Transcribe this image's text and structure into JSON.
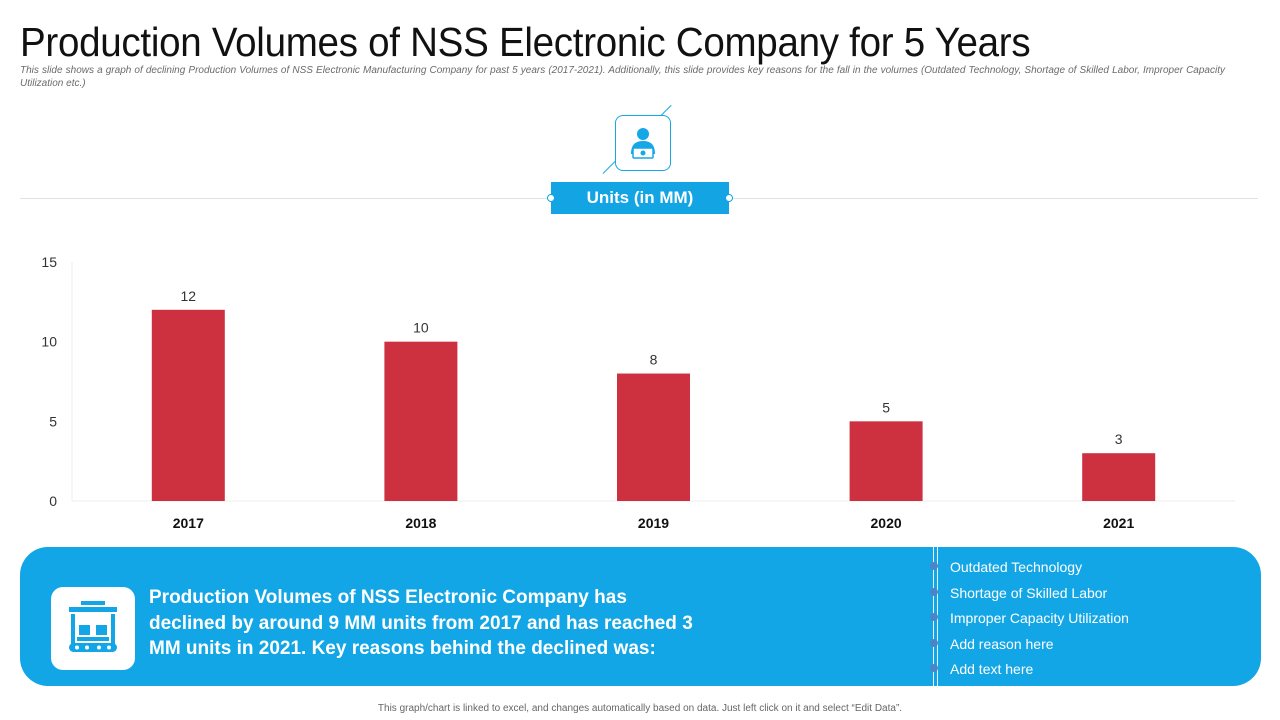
{
  "header": {
    "title": "Production Volumes of NSS Electronic Company for 5 Years",
    "subtitle": "This slide shows a graph of declining Production Volumes of NSS Electronic Manufacturing Company for past 5 years (2017-2021). Additionally, this slide provides key reasons for the fall in the volumes (Outdated Technology, Shortage of Skilled Labor, Improper Capacity Utilization  etc.)"
  },
  "units_label": "Units (in MM)",
  "chart_data": {
    "type": "bar",
    "title": "Units (in MM)",
    "categories": [
      "2017",
      "2018",
      "2019",
      "2020",
      "2021"
    ],
    "values": [
      12,
      10,
      8,
      5,
      3
    ],
    "data_labels": [
      "12",
      "10",
      "8",
      "5",
      "3"
    ],
    "ylim": [
      0,
      15
    ],
    "yticks": [
      0,
      5,
      10,
      15
    ],
    "xlabel": "",
    "ylabel": "",
    "grid": false,
    "bar_color": "#cd3140"
  },
  "summary": {
    "text": "Production Volumes of NSS Electronic Company has declined by around 9 MM units from 2017 and has reached 3 MM units in 2021. Key reasons behind the declined was:",
    "reasons": [
      "Outdated Technology",
      "Shortage of Skilled Labor",
      "Improper Capacity Utilization",
      "Add reason here",
      "Add text here"
    ]
  },
  "footnote": "This graph/chart is linked to excel, and changes automatically  based on data. Just left click on it and select “Edit Data”.",
  "colors": {
    "accent": "#13a6e6",
    "bar": "#cd3140",
    "bullet": "#4b85c7"
  }
}
